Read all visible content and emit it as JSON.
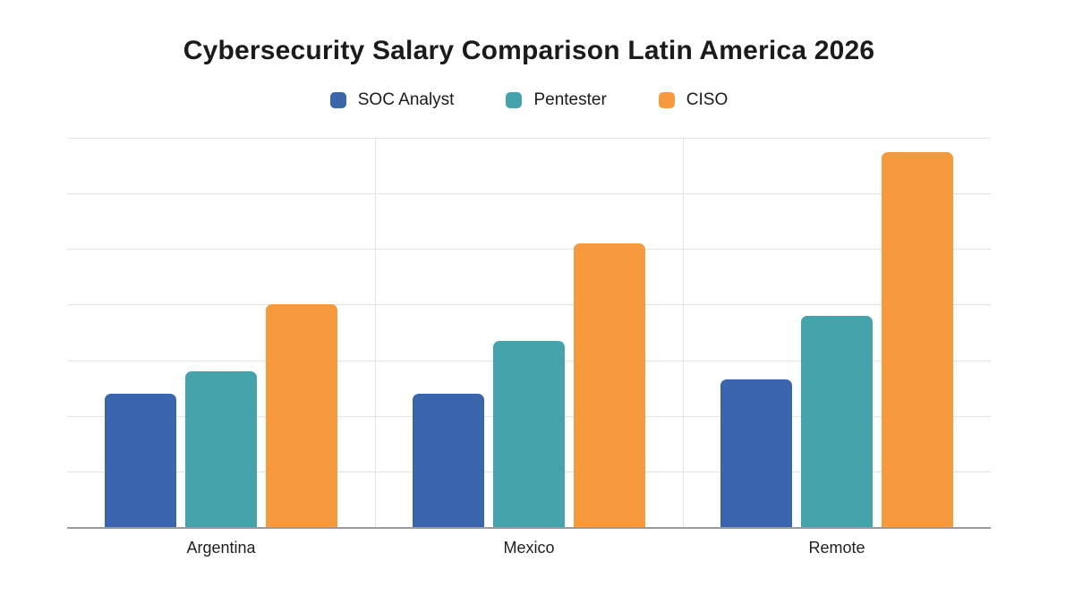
{
  "chart_data": {
    "type": "bar",
    "title": "Cybersecurity Salary Comparison Latin America 2026",
    "categories": [
      "Argentina",
      "Mexico",
      "Remote"
    ],
    "series": [
      {
        "name": "SOC Analyst",
        "color": "#3b66ae",
        "values": [
          2.4,
          2.4,
          2.65
        ]
      },
      {
        "name": "Pentester",
        "color": "#45a3ab",
        "values": [
          2.8,
          3.35,
          3.8
        ]
      },
      {
        "name": "CISO",
        "color": "#f7993d",
        "values": [
          4.0,
          5.1,
          6.75
        ]
      }
    ],
    "xlabel": "",
    "ylabel": "",
    "ylim": [
      0,
      7
    ],
    "y_axis": {
      "tick_labels_visible": false,
      "gridline_count": 7,
      "note": "y-axis has no numeric labels; values estimated in gridline units from bar heights"
    },
    "legend_position": "top",
    "grid": {
      "horizontal": true,
      "vertical_category_separators": true
    },
    "colors": {
      "background": "#ffffff",
      "gridline": "#e3e3e7",
      "axis_line": "#9a9aa0",
      "title_text": "#1b1b1b",
      "label_text": "#1f1f1f"
    }
  }
}
